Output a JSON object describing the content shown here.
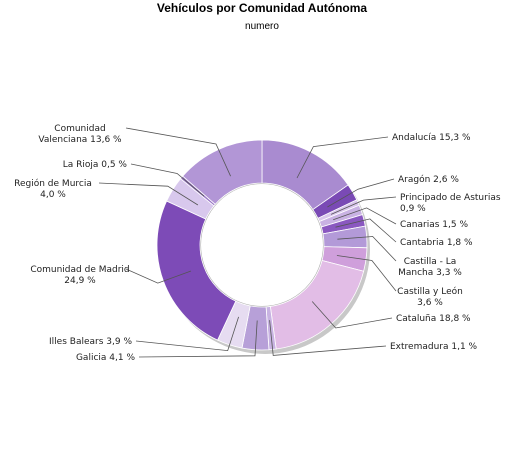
{
  "chart_data": {
    "type": "pie",
    "style": "donut",
    "title": "Vehículos por Comunidad Autónoma",
    "subtitle": "numero",
    "slices": [
      {
        "name": "Andalucía",
        "value": 15.3,
        "label": "Andalucía 15,3 %",
        "color": "#a98bd0"
      },
      {
        "name": "Aragón",
        "value": 2.6,
        "label": "Aragón 2,6 %",
        "color": "#7a4ab5"
      },
      {
        "name": "Principado de Asturias",
        "value": 0.9,
        "label": "Principado de Asturias 0,9 %",
        "color": "#d9c6ec"
      },
      {
        "name": "Canarias",
        "value": 1.5,
        "label": "Canarias 1,5 %",
        "color": "#c9b2e3"
      },
      {
        "name": "Cantabria",
        "value": 1.8,
        "label": "Cantabria 1,8 %",
        "color": "#8a58c0"
      },
      {
        "name": "Castilla - La Mancha",
        "value": 3.3,
        "label": "Castilla - La Mancha 3,3 %",
        "color": "#b39ad8"
      },
      {
        "name": "Castilla y León",
        "value": 3.6,
        "label": "Castilla y León 3,6 %",
        "color": "#cf9fdb"
      },
      {
        "name": "Cataluña",
        "value": 18.8,
        "label": "Cataluña 18,8 %",
        "color": "#e2bde6"
      },
      {
        "name": "Extremadura",
        "value": 1.1,
        "label": "Extremadura 1,1 %",
        "color": "#c8b3e2"
      },
      {
        "name": "Galicia",
        "value": 4.1,
        "label": "Galicia 4,1 %",
        "color": "#b7a0d8"
      },
      {
        "name": "Illes Balears",
        "value": 3.9,
        "label": "Illes Balears 3,9 %",
        "color": "#e6dcf1"
      },
      {
        "name": "Comunidad de Madrid",
        "value": 24.9,
        "label": "Comunidad de Madrid 24,9 %",
        "color": "#7d4bb7"
      },
      {
        "name": "Región de Murcia",
        "value": 4.0,
        "label": "Región de Murcia 4,0 %",
        "color": "#d8c8ed"
      },
      {
        "name": "La Rioja",
        "value": 0.5,
        "label": "La Rioja 0,5 %",
        "color": "#9a78c6"
      },
      {
        "name": "Comunidad Valenciana",
        "value": 13.6,
        "label": "Comunidad Valenciana 13,6 %",
        "color": "#b296d6"
      }
    ]
  }
}
